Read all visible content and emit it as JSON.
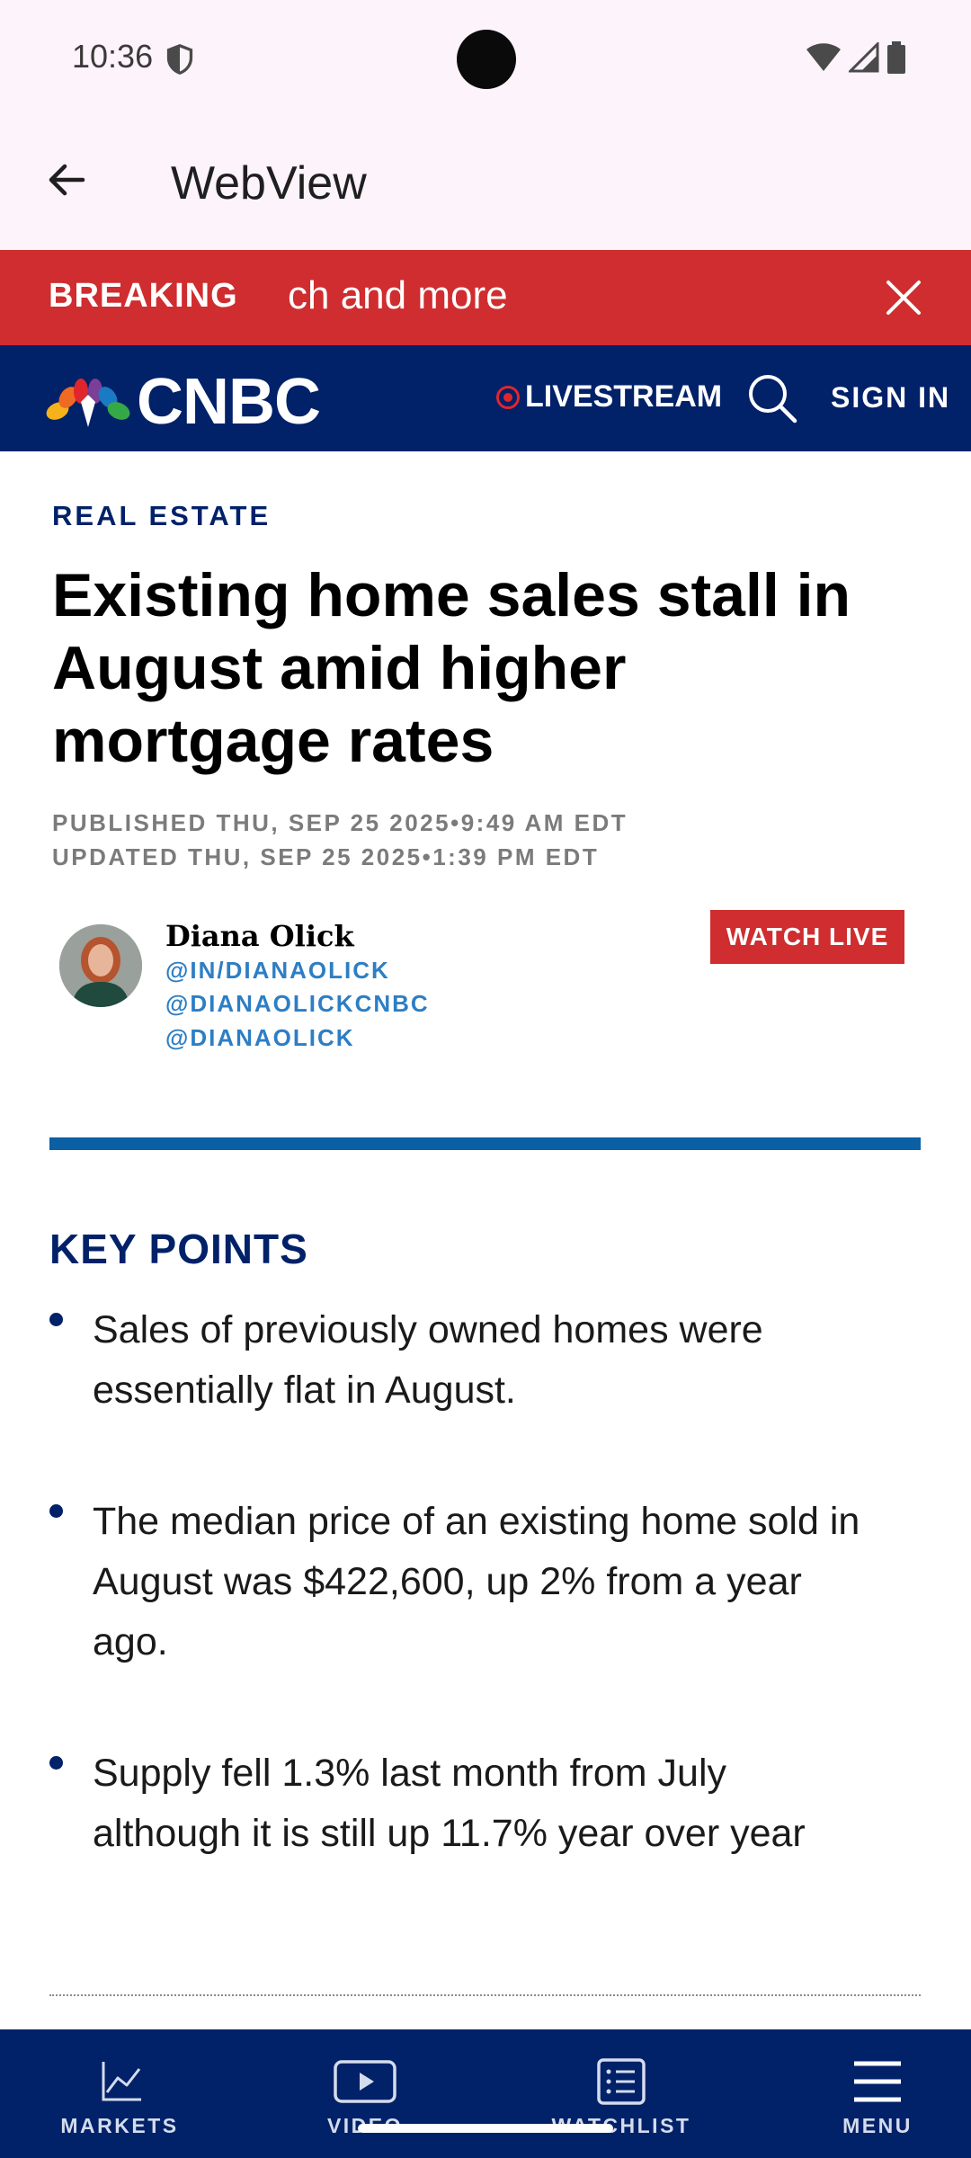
{
  "status_bar": {
    "time": "10:36"
  },
  "app_bar": {
    "title": "WebView"
  },
  "breaking": {
    "label": "BREAKING",
    "text": "ch and more"
  },
  "header": {
    "logo_text": "CNBC",
    "livestream": "LIVESTREAM",
    "sign_in": "SIGN IN"
  },
  "article": {
    "category": "REAL ESTATE",
    "headline": "Existing home sales stall in August amid higher mortgage rates",
    "published": "PUBLISHED THU, SEP 25 2025•9:49 AM EDT",
    "updated": "UPDATED THU, SEP 25 2025•1:39 PM EDT",
    "author": {
      "name": "Diana Olick",
      "links": [
        "@IN/DIANAOLICK",
        "@DIANAOLICKCNBC",
        "@DIANAOLICK"
      ]
    },
    "watch_live": "WATCH LIVE",
    "key_points_title": "KEY POINTS",
    "key_points": [
      "Sales of previously owned homes were essentially flat in August.",
      "The median price of an existing home sold in August was $422,600, up 2% from a year ago.",
      "Supply fell 1.3% last month from July although it is still up 11.7% year over year"
    ]
  },
  "bottom_nav": {
    "items": [
      {
        "label": "MARKETS",
        "icon": "chart-line-icon"
      },
      {
        "label": "VIDEO",
        "icon": "play-icon"
      },
      {
        "label": "WATCHLIST",
        "icon": "list-icon"
      },
      {
        "label": "MENU",
        "icon": "hamburger-icon"
      }
    ]
  },
  "colors": {
    "cnbc_navy": "#012169",
    "breaking_red": "#cf2d2f",
    "link_blue": "#2d7ec4",
    "divider_blue": "#0a5fa5"
  }
}
